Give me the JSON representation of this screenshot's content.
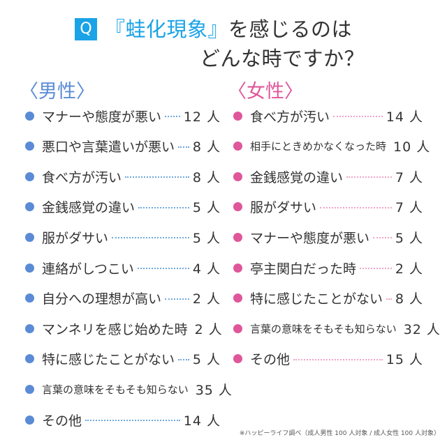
{
  "header": {
    "q_mark": "Q",
    "title_highlight": "『蛙化現象』",
    "title_rest": "を感じるのは",
    "title_line2": "どんな時ですか？"
  },
  "footnote": "※ハッピーライフ調べ（成人男性 100 人対象 / 成人女性 100 人対象）",
  "colors": {
    "male": "#5b8bd6",
    "female": "#e0569a",
    "accent": "#1aa3e6"
  },
  "chart_data": [
    {
      "type": "table",
      "title": "〈男性〉",
      "unit": "人",
      "items": [
        {
          "label": "マナーや態度が悪い",
          "count": "12 人",
          "value": 12
        },
        {
          "label": "悪口や言葉遣いが悪い",
          "count": "8 人",
          "value": 8
        },
        {
          "label": "食べ方が汚い",
          "count": "8 人",
          "value": 8
        },
        {
          "label": "金銭感覚の違い",
          "count": "5 人",
          "value": 5
        },
        {
          "label": "服がダサい",
          "count": "5 人",
          "value": 5
        },
        {
          "label": "連絡がしつこい",
          "count": "4 人",
          "value": 4
        },
        {
          "label": "自分への理想が高い",
          "count": "2 人",
          "value": 2
        },
        {
          "label": "マンネリを感じ始めた時",
          "count": "2 人",
          "value": 2
        },
        {
          "label": "特に感じたことがない",
          "count": "5 人",
          "value": 5
        },
        {
          "label": "言葉の意味をそもそも知らない",
          "count": "35 人",
          "value": 35
        },
        {
          "label": "その他",
          "count": "14 人",
          "value": 14
        }
      ]
    },
    {
      "type": "table",
      "title": "〈女性〉",
      "unit": "人",
      "items": [
        {
          "label": "食べ方が汚い",
          "count": "14 人",
          "value": 14
        },
        {
          "label": "相手にときめかなくなった時",
          "count": "10 人",
          "value": 10
        },
        {
          "label": "金銭感覚の違い",
          "count": "7 人",
          "value": 7
        },
        {
          "label": "服がダサい",
          "count": "7 人",
          "value": 7
        },
        {
          "label": "マナーや態度が悪い",
          "count": "5 人",
          "value": 5
        },
        {
          "label": "亭主関白だった時",
          "count": "2 人",
          "value": 2
        },
        {
          "label": "特に感じたことがない",
          "count": "8 人",
          "value": 8
        },
        {
          "label": "言葉の意味をそもそも知らない",
          "count": "32 人",
          "value": 32
        },
        {
          "label": "その他",
          "count": "15 人",
          "value": 15
        }
      ]
    }
  ]
}
